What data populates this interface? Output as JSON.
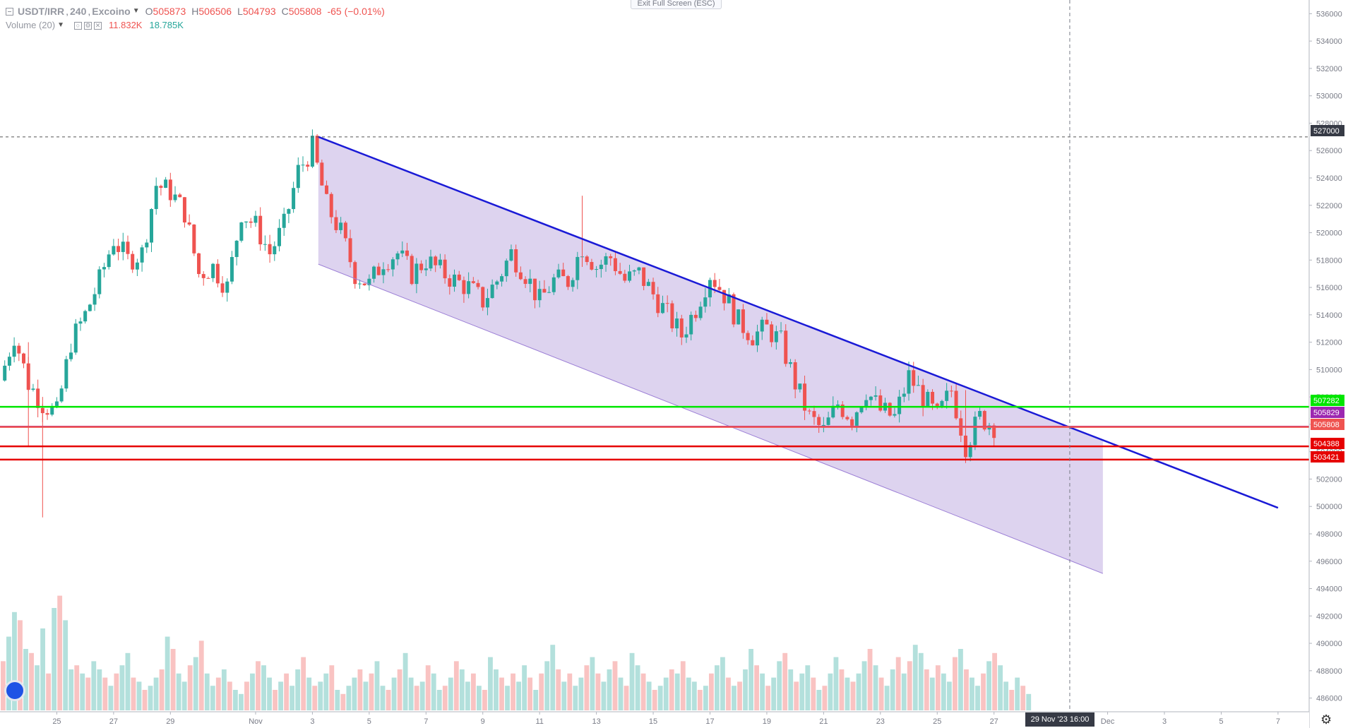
{
  "header": {
    "symbol": "USDT/IRR",
    "interval": "240",
    "exchange": "Excoino",
    "separator": ",",
    "ohlc": [
      {
        "label": "O",
        "value": "505873"
      },
      {
        "label": "H",
        "value": "506506"
      },
      {
        "label": "L",
        "value": "504793"
      },
      {
        "label": "C",
        "value": "505808"
      }
    ],
    "change": "-65 (−0.01%)"
  },
  "volume_legend": {
    "name": "Volume (20)",
    "icon_eye": "○",
    "icon_settings": "⚙",
    "icon_close": "✕",
    "value_a": "11.832K",
    "value_b": "18.785K"
  },
  "exit_fullscreen_label": "Exit Full Screen (ESC)",
  "crosshair_time_label": "29 Nov '23   16:00",
  "icons": {
    "logo": "tradingview-logo-icon",
    "settings": "gear-icon",
    "gear_glyph": "⚙"
  },
  "colors": {
    "up": "#26a69a",
    "down": "#ef5350",
    "channel_fill": "#d1c4e9",
    "channel_line": "#1a1ad6",
    "green_level": "#00e600",
    "purple_level": "#9c27b0",
    "red_level": "#e60000"
  },
  "chart_data": {
    "type": "candlestick",
    "ylim": [
      485000,
      537000
    ],
    "y_ticks": [
      486000,
      488000,
      490000,
      492000,
      494000,
      496000,
      498000,
      500000,
      502000,
      504000,
      506000,
      508000,
      510000,
      512000,
      514000,
      516000,
      518000,
      520000,
      522000,
      524000,
      526000,
      528000,
      530000,
      532000,
      534000,
      536000
    ],
    "x_start": "2023-10-23T00:00",
    "x_end": "2023-12-07T12:00",
    "x_ticks": [
      {
        "date": "2023-10-25",
        "label": "25"
      },
      {
        "date": "2023-10-27",
        "label": "27"
      },
      {
        "date": "2023-10-29",
        "label": "29"
      },
      {
        "date": "2023-11-01",
        "label": "Nov"
      },
      {
        "date": "2023-11-03",
        "label": "3"
      },
      {
        "date": "2023-11-05",
        "label": "5"
      },
      {
        "date": "2023-11-07",
        "label": "7"
      },
      {
        "date": "2023-11-09",
        "label": "9"
      },
      {
        "date": "2023-11-11",
        "label": "11"
      },
      {
        "date": "2023-11-13",
        "label": "13"
      },
      {
        "date": "2023-11-15",
        "label": "15"
      },
      {
        "date": "2023-11-17",
        "label": "17"
      },
      {
        "date": "2023-11-19",
        "label": "19"
      },
      {
        "date": "2023-11-21",
        "label": "21"
      },
      {
        "date": "2023-11-23",
        "label": "23"
      },
      {
        "date": "2023-11-25",
        "label": "25"
      },
      {
        "date": "2023-11-27",
        "label": "27"
      },
      {
        "date": "2023-12-01",
        "label": "Dec"
      },
      {
        "date": "2023-12-03",
        "label": "3"
      },
      {
        "date": "2023-12-05",
        "label": "5"
      },
      {
        "date": "2023-12-07",
        "label": "7"
      }
    ],
    "price_path": [
      {
        "date": "2023-10-23T00:00",
        "price": 509200
      },
      {
        "date": "2023-10-23T12:00",
        "price": 512500
      },
      {
        "date": "2023-10-24T00:00",
        "price": 509000
      },
      {
        "date": "2023-10-24T12:00",
        "price": 507500
      },
      {
        "date": "2023-10-25T00:00",
        "price": 506800
      },
      {
        "date": "2023-10-25T12:00",
        "price": 512000
      },
      {
        "date": "2023-10-26T00:00",
        "price": 514000
      },
      {
        "date": "2023-10-26T12:00",
        "price": 516500
      },
      {
        "date": "2023-10-27T00:00",
        "price": 519500
      },
      {
        "date": "2023-10-27T12:00",
        "price": 518000
      },
      {
        "date": "2023-10-28T00:00",
        "price": 518500
      },
      {
        "date": "2023-10-28T12:00",
        "price": 523500
      },
      {
        "date": "2023-10-29T00:00",
        "price": 523000
      },
      {
        "date": "2023-10-29T12:00",
        "price": 521500
      },
      {
        "date": "2023-10-30T00:00",
        "price": 517000
      },
      {
        "date": "2023-10-30T12:00",
        "price": 517500
      },
      {
        "date": "2023-10-31T00:00",
        "price": 516000
      },
      {
        "date": "2023-10-31T12:00",
        "price": 521500
      },
      {
        "date": "2023-11-01T00:00",
        "price": 520500
      },
      {
        "date": "2023-11-01T12:00",
        "price": 518500
      },
      {
        "date": "2023-11-02T00:00",
        "price": 520500
      },
      {
        "date": "2023-11-02T12:00",
        "price": 524500
      },
      {
        "date": "2023-11-03T00:00",
        "price": 526200
      },
      {
        "date": "2023-11-03T12:00",
        "price": 522000
      },
      {
        "date": "2023-11-04T00:00",
        "price": 520000
      },
      {
        "date": "2023-11-04T12:00",
        "price": 517000
      },
      {
        "date": "2023-11-05T00:00",
        "price": 516200
      },
      {
        "date": "2023-11-05T12:00",
        "price": 518000
      },
      {
        "date": "2023-11-06T00:00",
        "price": 518500
      },
      {
        "date": "2023-11-06T12:00",
        "price": 517000
      },
      {
        "date": "2023-11-07T00:00",
        "price": 518000
      },
      {
        "date": "2023-11-07T12:00",
        "price": 517200
      },
      {
        "date": "2023-11-08T00:00",
        "price": 516500
      },
      {
        "date": "2023-11-08T12:00",
        "price": 516000
      },
      {
        "date": "2023-11-09T00:00",
        "price": 515000
      },
      {
        "date": "2023-11-09T12:00",
        "price": 516500
      },
      {
        "date": "2023-11-10T00:00",
        "price": 518500
      },
      {
        "date": "2023-11-10T12:00",
        "price": 517000
      },
      {
        "date": "2023-11-11T00:00",
        "price": 515000
      },
      {
        "date": "2023-11-11T12:00",
        "price": 516500
      },
      {
        "date": "2023-11-12T00:00",
        "price": 516500
      },
      {
        "date": "2023-11-12T12:00",
        "price": 519000
      },
      {
        "date": "2023-11-13T00:00",
        "price": 517500
      },
      {
        "date": "2023-11-13T12:00",
        "price": 518200
      },
      {
        "date": "2023-11-14T00:00",
        "price": 516500
      },
      {
        "date": "2023-11-14T12:00",
        "price": 517000
      },
      {
        "date": "2023-11-15T00:00",
        "price": 515500
      },
      {
        "date": "2023-11-15T12:00",
        "price": 514000
      },
      {
        "date": "2023-11-16T00:00",
        "price": 512500
      },
      {
        "date": "2023-11-16T12:00",
        "price": 514500
      },
      {
        "date": "2023-11-17T00:00",
        "price": 517000
      },
      {
        "date": "2023-11-17T12:00",
        "price": 515500
      },
      {
        "date": "2023-11-18T00:00",
        "price": 513500
      },
      {
        "date": "2023-11-18T12:00",
        "price": 512500
      },
      {
        "date": "2023-11-19T00:00",
        "price": 513000
      },
      {
        "date": "2023-11-19T12:00",
        "price": 512000
      },
      {
        "date": "2023-11-20T00:00",
        "price": 509000
      },
      {
        "date": "2023-11-20T12:00",
        "price": 506500
      },
      {
        "date": "2023-11-21T00:00",
        "price": 505500
      },
      {
        "date": "2023-11-21T12:00",
        "price": 507500
      },
      {
        "date": "2023-11-22T00:00",
        "price": 506500
      },
      {
        "date": "2023-11-22T12:00",
        "price": 508500
      },
      {
        "date": "2023-11-23T00:00",
        "price": 507000
      },
      {
        "date": "2023-11-23T12:00",
        "price": 506500
      },
      {
        "date": "2023-11-24T00:00",
        "price": 509500
      },
      {
        "date": "2023-11-24T12:00",
        "price": 508000
      },
      {
        "date": "2023-11-25T00:00",
        "price": 506500
      },
      {
        "date": "2023-11-25T12:00",
        "price": 508500
      },
      {
        "date": "2023-11-26T00:00",
        "price": 504500
      },
      {
        "date": "2023-11-26T12:00",
        "price": 506500
      },
      {
        "date": "2023-11-27T00:00",
        "price": 505900
      }
    ],
    "spikes": [
      {
        "date": "2023-10-24T12:00",
        "high": 508000,
        "low": 499200
      },
      {
        "date": "2023-10-24T00:00",
        "high": 512000,
        "low": 504400
      },
      {
        "date": "2023-11-12T12:00",
        "high": 522700,
        "low": 517500
      },
      {
        "date": "2023-11-26T00:00",
        "high": 508500,
        "low": 503300
      }
    ],
    "volumes_k": [
      12,
      18,
      24,
      22,
      15,
      14,
      11,
      20,
      9,
      25,
      28,
      22,
      10,
      11,
      9,
      8,
      12,
      10,
      8,
      6,
      9,
      11,
      14,
      8,
      7,
      5,
      6,
      8,
      10,
      18,
      15,
      9,
      7,
      11,
      13,
      17,
      9,
      6,
      8,
      10,
      7,
      5,
      4,
      7,
      9,
      12,
      11,
      8,
      5,
      7,
      9,
      6,
      10,
      13,
      8,
      6,
      7,
      9,
      11,
      5,
      4,
      6,
      8,
      10,
      7,
      9,
      12,
      6,
      5,
      8,
      10,
      14,
      8,
      6,
      7,
      11,
      9,
      5,
      6,
      8,
      12,
      10,
      7,
      9,
      6,
      5,
      13,
      10,
      8,
      6,
      9,
      7,
      11,
      8,
      5,
      9,
      12,
      16,
      10,
      7,
      9,
      6,
      8,
      11,
      13,
      9,
      7,
      10,
      12,
      8,
      6,
      14,
      11,
      9,
      7,
      5,
      6,
      8,
      10,
      9,
      12,
      8,
      7,
      5,
      6,
      9,
      11,
      13,
      8,
      6,
      7,
      10,
      15,
      11,
      9,
      6,
      8,
      12,
      14,
      10,
      7,
      9,
      11,
      8,
      5,
      6,
      9,
      13,
      10,
      8,
      7,
      9,
      12,
      15,
      11,
      8,
      6,
      10,
      13,
      9,
      12,
      16,
      14,
      10,
      8,
      11,
      9,
      7,
      13,
      15,
      10,
      8,
      6,
      9,
      12,
      14,
      11,
      7,
      5,
      8,
      6,
      4
    ],
    "channel": {
      "upper_start": {
        "date": "2023-11-03T05:00",
        "price": 527000
      },
      "upper_end": {
        "date": "2023-12-07T00:00",
        "price": 499900
      },
      "lower_start": {
        "date": "2023-11-03T05:00",
        "price": 517700
      },
      "lower_end": {
        "date": "2023-11-30T20:00",
        "price": 495100
      },
      "fill_end": {
        "date": "2023-11-30T20:00"
      }
    },
    "horizontal_levels": [
      {
        "price": 527000,
        "label": "527000",
        "style": "dashed",
        "color": "#555555"
      },
      {
        "price": 507282,
        "label": "507282",
        "style": "solid",
        "color": "#00e600"
      },
      {
        "price": 505829,
        "label": "505829",
        "style": "solid",
        "color": "#9c27b0"
      },
      {
        "price": 505808,
        "label": "505808",
        "style": "solid",
        "color": "#ef5350"
      },
      {
        "price": 504388,
        "label": "504388",
        "style": "solid",
        "color": "#e60000"
      },
      {
        "price": 503421,
        "label": "503421",
        "style": "solid",
        "color": "#e60000"
      }
    ],
    "crosshair_date": "2023-11-29T16:00"
  }
}
